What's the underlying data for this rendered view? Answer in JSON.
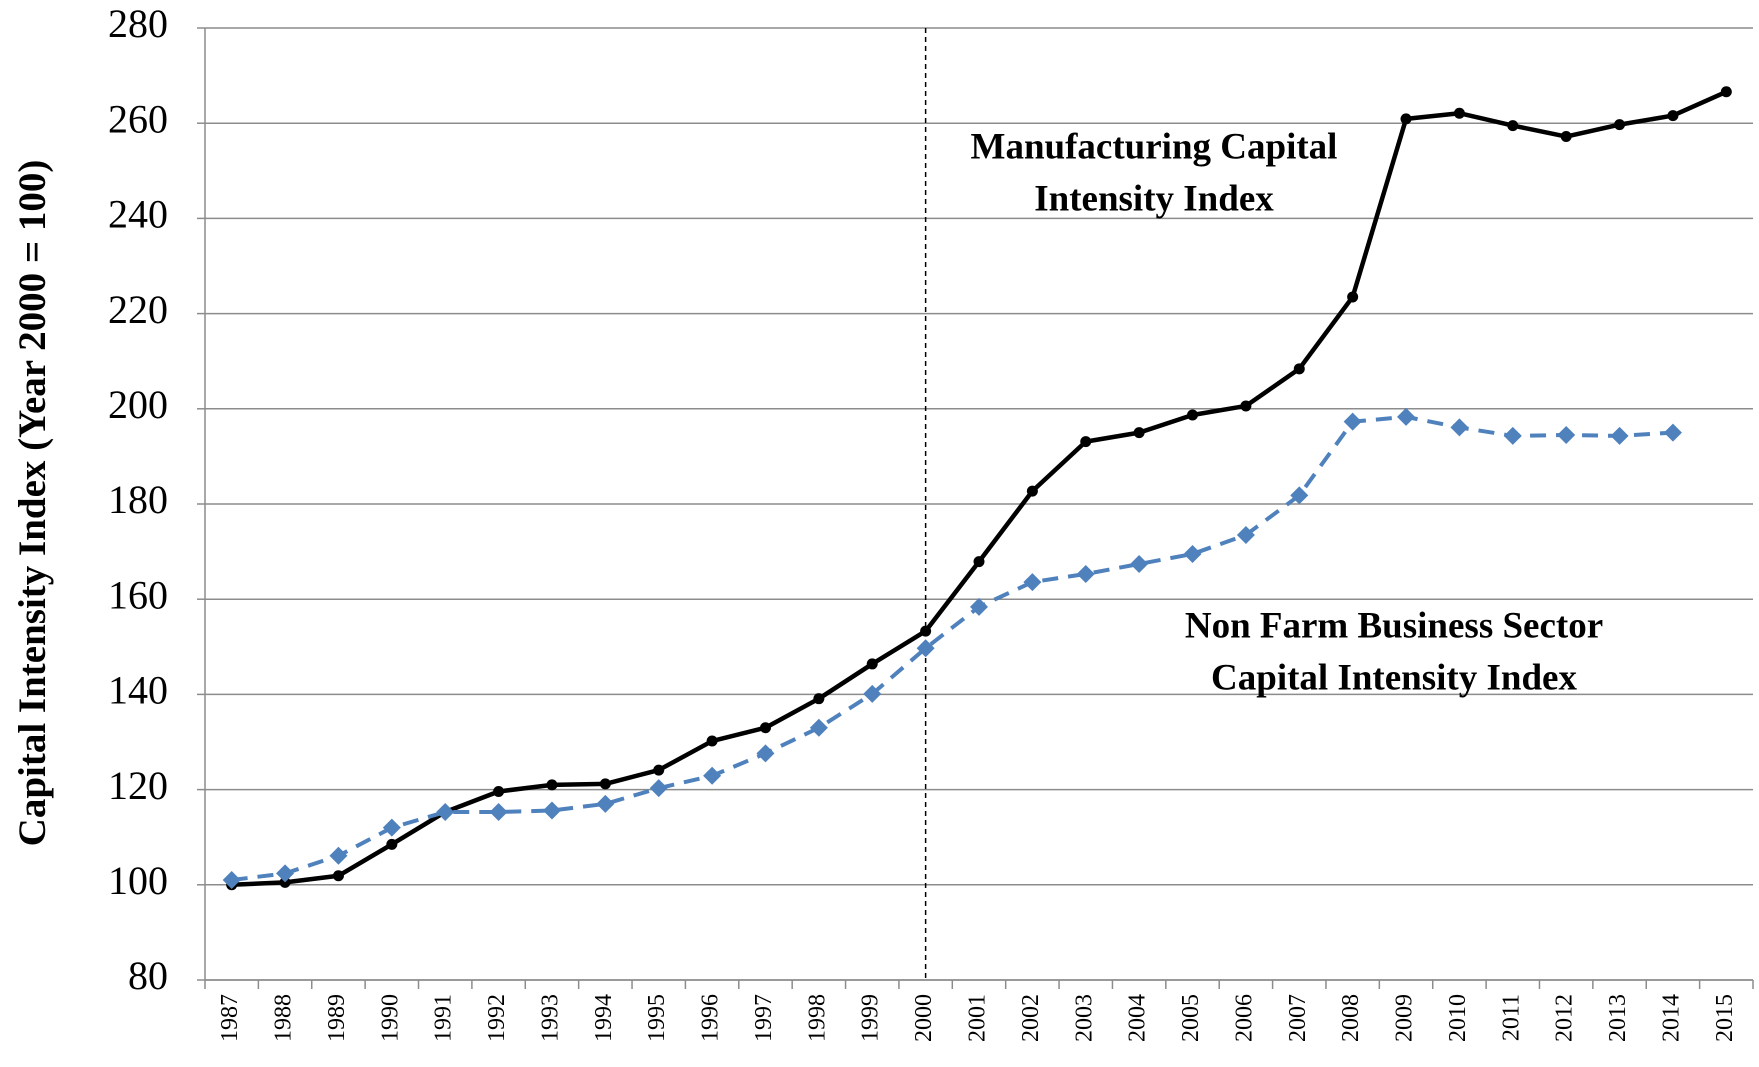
{
  "chart_data": {
    "type": "line",
    "y_label": "Capital Intensity Index (Year 2000 = 100)",
    "categories": [
      "1987",
      "1988",
      "1989",
      "1990",
      "1991",
      "1992",
      "1993",
      "1994",
      "1995",
      "1996",
      "1997",
      "1998",
      "1999",
      "2000",
      "2001",
      "2002",
      "2003",
      "2004",
      "2005",
      "2006",
      "2007",
      "2008",
      "2009",
      "2010",
      "2011",
      "2012",
      "2013",
      "2014",
      "2015"
    ],
    "series": [
      {
        "name": "Manufacturing Capital Intensity Index",
        "color": "#000000",
        "dash": false,
        "marker": "circle",
        "values": [
          100.0,
          100.5,
          101.9,
          108.5,
          115.3,
          119.6,
          121.0,
          121.2,
          124.1,
          130.2,
          133.0,
          139.1,
          146.4,
          153.3,
          167.9,
          182.7,
          193.1,
          195.0,
          198.7,
          200.6,
          208.4,
          223.5,
          260.9,
          262.1,
          259.5,
          257.2,
          259.7,
          261.6,
          266.6
        ]
      },
      {
        "name": "Non Farm Business Sector Capital Intensity Index",
        "color": "#4f81bd",
        "dash": true,
        "marker": "diamond",
        "values": [
          101.0,
          102.4,
          106.1,
          112.0,
          115.3,
          115.3,
          115.6,
          117.0,
          120.3,
          122.9,
          127.6,
          133.0,
          140.1,
          149.7,
          158.4,
          163.6,
          165.3,
          167.4,
          169.5,
          173.5,
          181.8,
          197.3,
          198.3,
          196.1,
          194.3,
          194.5,
          194.3,
          195.0,
          null
        ]
      }
    ],
    "annotations": [
      {
        "lines": [
          "Manufacturing Capital",
          "Intensity Index"
        ]
      },
      {
        "lines": [
          "Non Farm Business Sector",
          "Capital Intensity Index"
        ]
      }
    ],
    "vline_category": "2000",
    "ylim": [
      80,
      280
    ],
    "yticks": [
      80,
      100,
      120,
      140,
      160,
      180,
      200,
      220,
      240,
      260,
      280
    ],
    "grid": true
  }
}
